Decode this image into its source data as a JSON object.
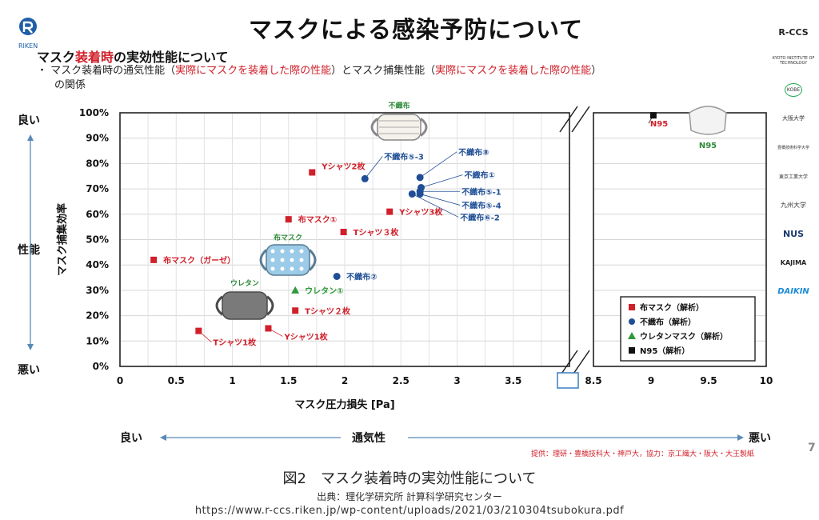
{
  "header": {
    "title": "マスクによる感染予防について",
    "subtitle_pre": "マスク",
    "subtitle_red": "装着時",
    "subtitle_post": "の実効性能について",
    "bullet_1": "・ マスク装着時の通気性能（",
    "bullet_red_1": "実際にマスクを装着した際の性能",
    "bullet_2": "）とマスク捕集性能（",
    "bullet_red_2": "実際にマスクを装着した際の性能",
    "bullet_3": "）",
    "bullet_4": "の関係"
  },
  "logos": {
    "riken": "RIKEN",
    "right": [
      "R-CCS",
      "KYOTO INSTITUTE OF TECHNOLOGY",
      "KOBE",
      "大阪大学",
      "豊橋技術科学大学",
      "東京工業大学",
      "九州大学",
      "NUS",
      "KAJIMA",
      "DAIKIN"
    ]
  },
  "side_labels": {
    "good": "良い",
    "performance": "性能",
    "bad": "悪い"
  },
  "bottom_labels": {
    "good": "良い",
    "breathability": "通気性",
    "bad": "悪い"
  },
  "credit": "提供：理研・豊橋技科大・神戸大，協力：京工繊大・阪大・大王製紙",
  "page_number": "7",
  "caption": "図2　マスク装着時の実効性能について",
  "source": "出典：理化学研究所 計算科学研究センター",
  "url": "https://www.r-ccs.riken.jp/wp-content/uploads/2021/03/210304tsubokura.pdf",
  "colors": {
    "cloth": "#d0202a",
    "nonwoven": "#1f4e96",
    "urethane": "#2e9a3a",
    "n95": "#111111",
    "label_green": "#2e8b3a"
  },
  "chart_data": {
    "type": "scatter",
    "xlabel": "マスク圧力損失 [Pa]",
    "ylabel": "マスク捕集効率",
    "xlim_main": [
      0,
      4
    ],
    "xlim_break": [
      8.5,
      10
    ],
    "ylim": [
      0,
      1
    ],
    "x_ticks_main": [
      "0",
      "0.5",
      "1",
      "1.5",
      "2",
      "2.5",
      "3",
      "3.5"
    ],
    "x_ticks_break": [
      "8.5",
      "9",
      "9.5",
      "10"
    ],
    "y_ticks": [
      "0%",
      "10%",
      "20%",
      "30%",
      "40%",
      "50%",
      "60%",
      "70%",
      "80%",
      "90%",
      "100%"
    ],
    "grid": true,
    "legend_position": "bottom-right",
    "illustration_labels": {
      "nonwoven": "不織布",
      "cloth": "布マスク",
      "urethane": "ウレタン",
      "n95": "N95"
    },
    "series": [
      {
        "name": "布マスク（解析）",
        "marker": "square",
        "points": [
          {
            "label": "布マスク（ガーゼ）",
            "x": 0.3,
            "y": 0.42
          },
          {
            "label": "Tシャツ1枚",
            "x": 0.7,
            "y": 0.14
          },
          {
            "label": "Yシャツ1枚",
            "x": 1.32,
            "y": 0.15
          },
          {
            "label": "Tシャツ２枚",
            "x": 1.56,
            "y": 0.22
          },
          {
            "label": "布マスク①",
            "x": 1.5,
            "y": 0.58
          },
          {
            "label": "Tシャツ３枚",
            "x": 1.99,
            "y": 0.53
          },
          {
            "label": "Yシャツ2枚",
            "x": 1.71,
            "y": 0.765
          },
          {
            "label": "Yシャツ3枚",
            "x": 2.4,
            "y": 0.61
          }
        ]
      },
      {
        "name": "不織布（解析）",
        "marker": "circle",
        "points": [
          {
            "label": "不織布②",
            "x": 1.93,
            "y": 0.355
          },
          {
            "label": "不織布⑤-3",
            "x": 2.18,
            "y": 0.74
          },
          {
            "label": "不織布⑧",
            "x": 2.67,
            "y": 0.745
          },
          {
            "label": "不織布①",
            "x": 2.68,
            "y": 0.705
          },
          {
            "label": "不織布⑤-1",
            "x": 2.67,
            "y": 0.69
          },
          {
            "label": "不織布⑤-4",
            "x": 2.67,
            "y": 0.68
          },
          {
            "label": "不織布⑥-2",
            "x": 2.6,
            "y": 0.68
          }
        ]
      },
      {
        "name": "ウレタンマスク（解析）",
        "marker": "triangle",
        "points": [
          {
            "label": "ウレタン①",
            "x": 1.56,
            "y": 0.3
          }
        ]
      },
      {
        "name": "N95（解析）",
        "marker": "square",
        "points": [
          {
            "label": "N95",
            "x": 9.02,
            "y": 0.99
          }
        ]
      }
    ]
  }
}
